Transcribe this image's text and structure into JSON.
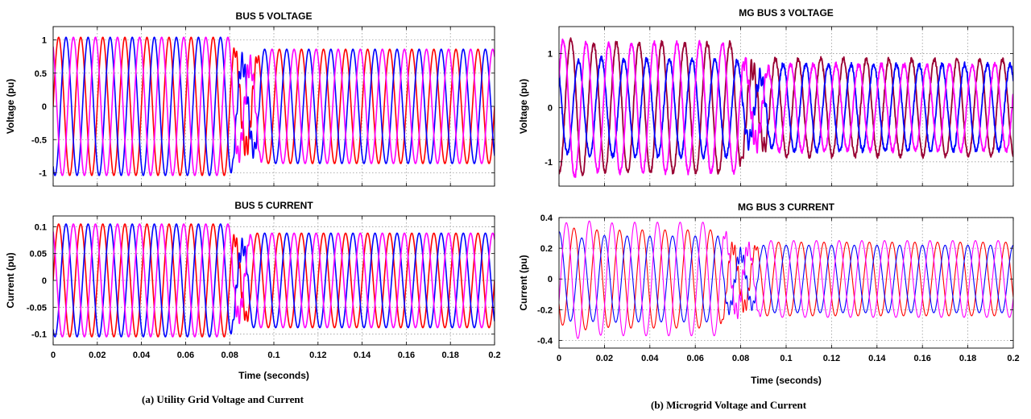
{
  "captions": {
    "a": "(a) Utility Grid Voltage and Current",
    "b": "(b) Microgrid Voltage and Current"
  },
  "chart_data": [
    {
      "id": "bus5-voltage",
      "type": "line",
      "title": "BUS 5 VOLTAGE",
      "xlabel": "",
      "ylabel": "Voltage (pu)",
      "xlim": [
        0,
        0.2
      ],
      "ylim": [
        -1.2,
        1.2
      ],
      "yticks": [
        -1,
        -0.5,
        0,
        0.5,
        1
      ],
      "xticks": [],
      "grid": true,
      "frequency_hz": 100,
      "disturbance_window": [
        0.08,
        0.095
      ],
      "series": [
        {
          "color": "#ff0000",
          "amplitude_pre": 1.04,
          "amplitude_post": 0.86,
          "phase_deg": 0
        },
        {
          "color": "#0000ff",
          "amplitude_pre": 1.04,
          "amplitude_post": 0.86,
          "phase_deg": -120
        },
        {
          "color": "#ff00ff",
          "amplitude_pre": 1.04,
          "amplitude_post": 0.86,
          "phase_deg": 120
        }
      ]
    },
    {
      "id": "bus5-current",
      "type": "line",
      "title": "BUS 5 CURRENT",
      "xlabel": "Time (seconds)",
      "ylabel": "Current (pu)",
      "xlim": [
        0,
        0.2
      ],
      "ylim": [
        -0.12,
        0.12
      ],
      "yticks": [
        -0.1,
        -0.05,
        0,
        0.05,
        0.1
      ],
      "xticks": [
        0,
        0.02,
        0.04,
        0.06,
        0.08,
        0.1,
        0.12,
        0.14,
        0.16,
        0.18,
        0.2
      ],
      "grid": true,
      "frequency_hz": 100,
      "disturbance_window": [
        0.08,
        0.09
      ],
      "series": [
        {
          "color": "#ff0000",
          "amplitude_pre": 0.105,
          "amplitude_post": 0.088,
          "phase_deg": 0
        },
        {
          "color": "#0000ff",
          "amplitude_pre": 0.105,
          "amplitude_post": 0.088,
          "phase_deg": -120
        },
        {
          "color": "#ff00ff",
          "amplitude_pre": 0.105,
          "amplitude_post": 0.088,
          "phase_deg": 120
        }
      ]
    },
    {
      "id": "mg-bus3-voltage",
      "type": "line",
      "title": "MG BUS 3 VOLTAGE",
      "xlabel": "",
      "ylabel": "Voltage (pu)",
      "xlim": [
        0,
        0.2
      ],
      "ylim": [
        -1.45,
        1.5
      ],
      "yticks": [
        -1,
        0,
        1
      ],
      "xticks": [],
      "grid": true,
      "frequency_hz": 100,
      "disturbance_window": [
        0.078,
        0.095
      ],
      "series": [
        {
          "color": "#990033",
          "amplitude_pre": 1.2,
          "amplitude_post": 0.9,
          "phase_deg": -100
        },
        {
          "color": "#0000ff",
          "amplitude_pre": 0.9,
          "amplitude_post": 0.8,
          "phase_deg": 140
        },
        {
          "color": "#ff00ff",
          "amplitude_pre": 1.2,
          "amplitude_post": 0.8,
          "phase_deg": 20
        }
      ]
    },
    {
      "id": "mg-bus3-current",
      "type": "line",
      "title": "MG BUS 3 CURRENT",
      "xlabel": "Time (seconds)",
      "ylabel": "Current (pu)",
      "xlim": [
        0,
        0.2
      ],
      "ylim": [
        -0.45,
        0.4
      ],
      "yticks": [
        -0.4,
        -0.2,
        0,
        0.2,
        0.4
      ],
      "xticks": [
        0,
        0.02,
        0.04,
        0.06,
        0.08,
        0.1,
        0.12,
        0.14,
        0.16,
        0.18,
        0.2
      ],
      "grid": true,
      "frequency_hz": 100,
      "disturbance_window": [
        0.07,
        0.09
      ],
      "series": [
        {
          "color": "#ff0000",
          "amplitude_pre": 0.32,
          "amplitude_post": 0.24,
          "phase_deg": -150
        },
        {
          "color": "#0000ff",
          "amplitude_pre": 0.28,
          "amplitude_post": 0.22,
          "phase_deg": 90
        },
        {
          "color": "#ff00ff",
          "amplitude_pre": 0.37,
          "amplitude_post": 0.25,
          "phase_deg": -30
        }
      ]
    }
  ]
}
